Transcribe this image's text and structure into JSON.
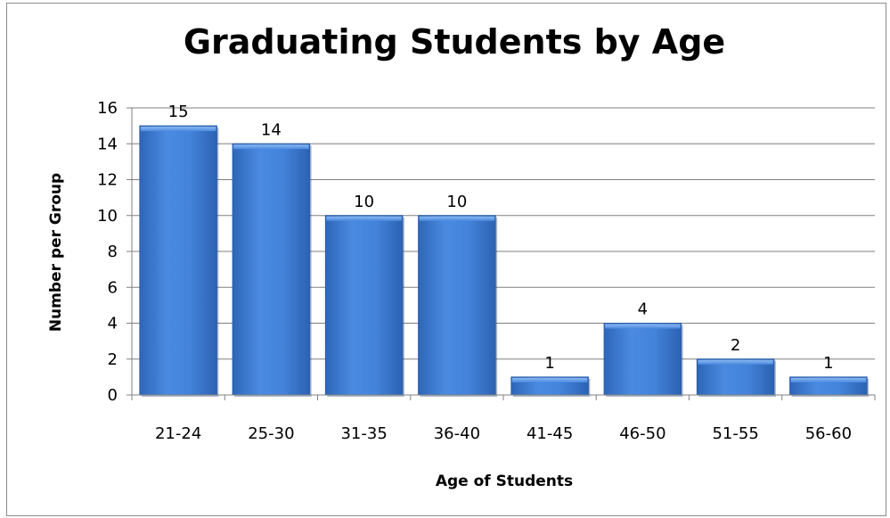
{
  "chart_data": {
    "type": "bar",
    "title": "Graduating Students by Age",
    "xlabel": "Age of Students",
    "ylabel": "Number per Group",
    "categories": [
      "21-24",
      "25-30",
      "31-35",
      "36-40",
      "41-45",
      "46-50",
      "51-55",
      "56-60"
    ],
    "values": [
      15,
      14,
      10,
      10,
      1,
      4,
      2,
      1
    ],
    "ylim": [
      0,
      16
    ],
    "yticks": [
      "0",
      "2",
      "4",
      "6",
      "8",
      "10",
      "12",
      "14",
      "16"
    ],
    "grid": true,
    "legend": "none",
    "data_labels": true,
    "colors": {
      "bar": "#3f7fd4",
      "bar_dark": "#2a5ea8",
      "bar_light": "#6fa3e8",
      "grid": "#808080"
    }
  }
}
